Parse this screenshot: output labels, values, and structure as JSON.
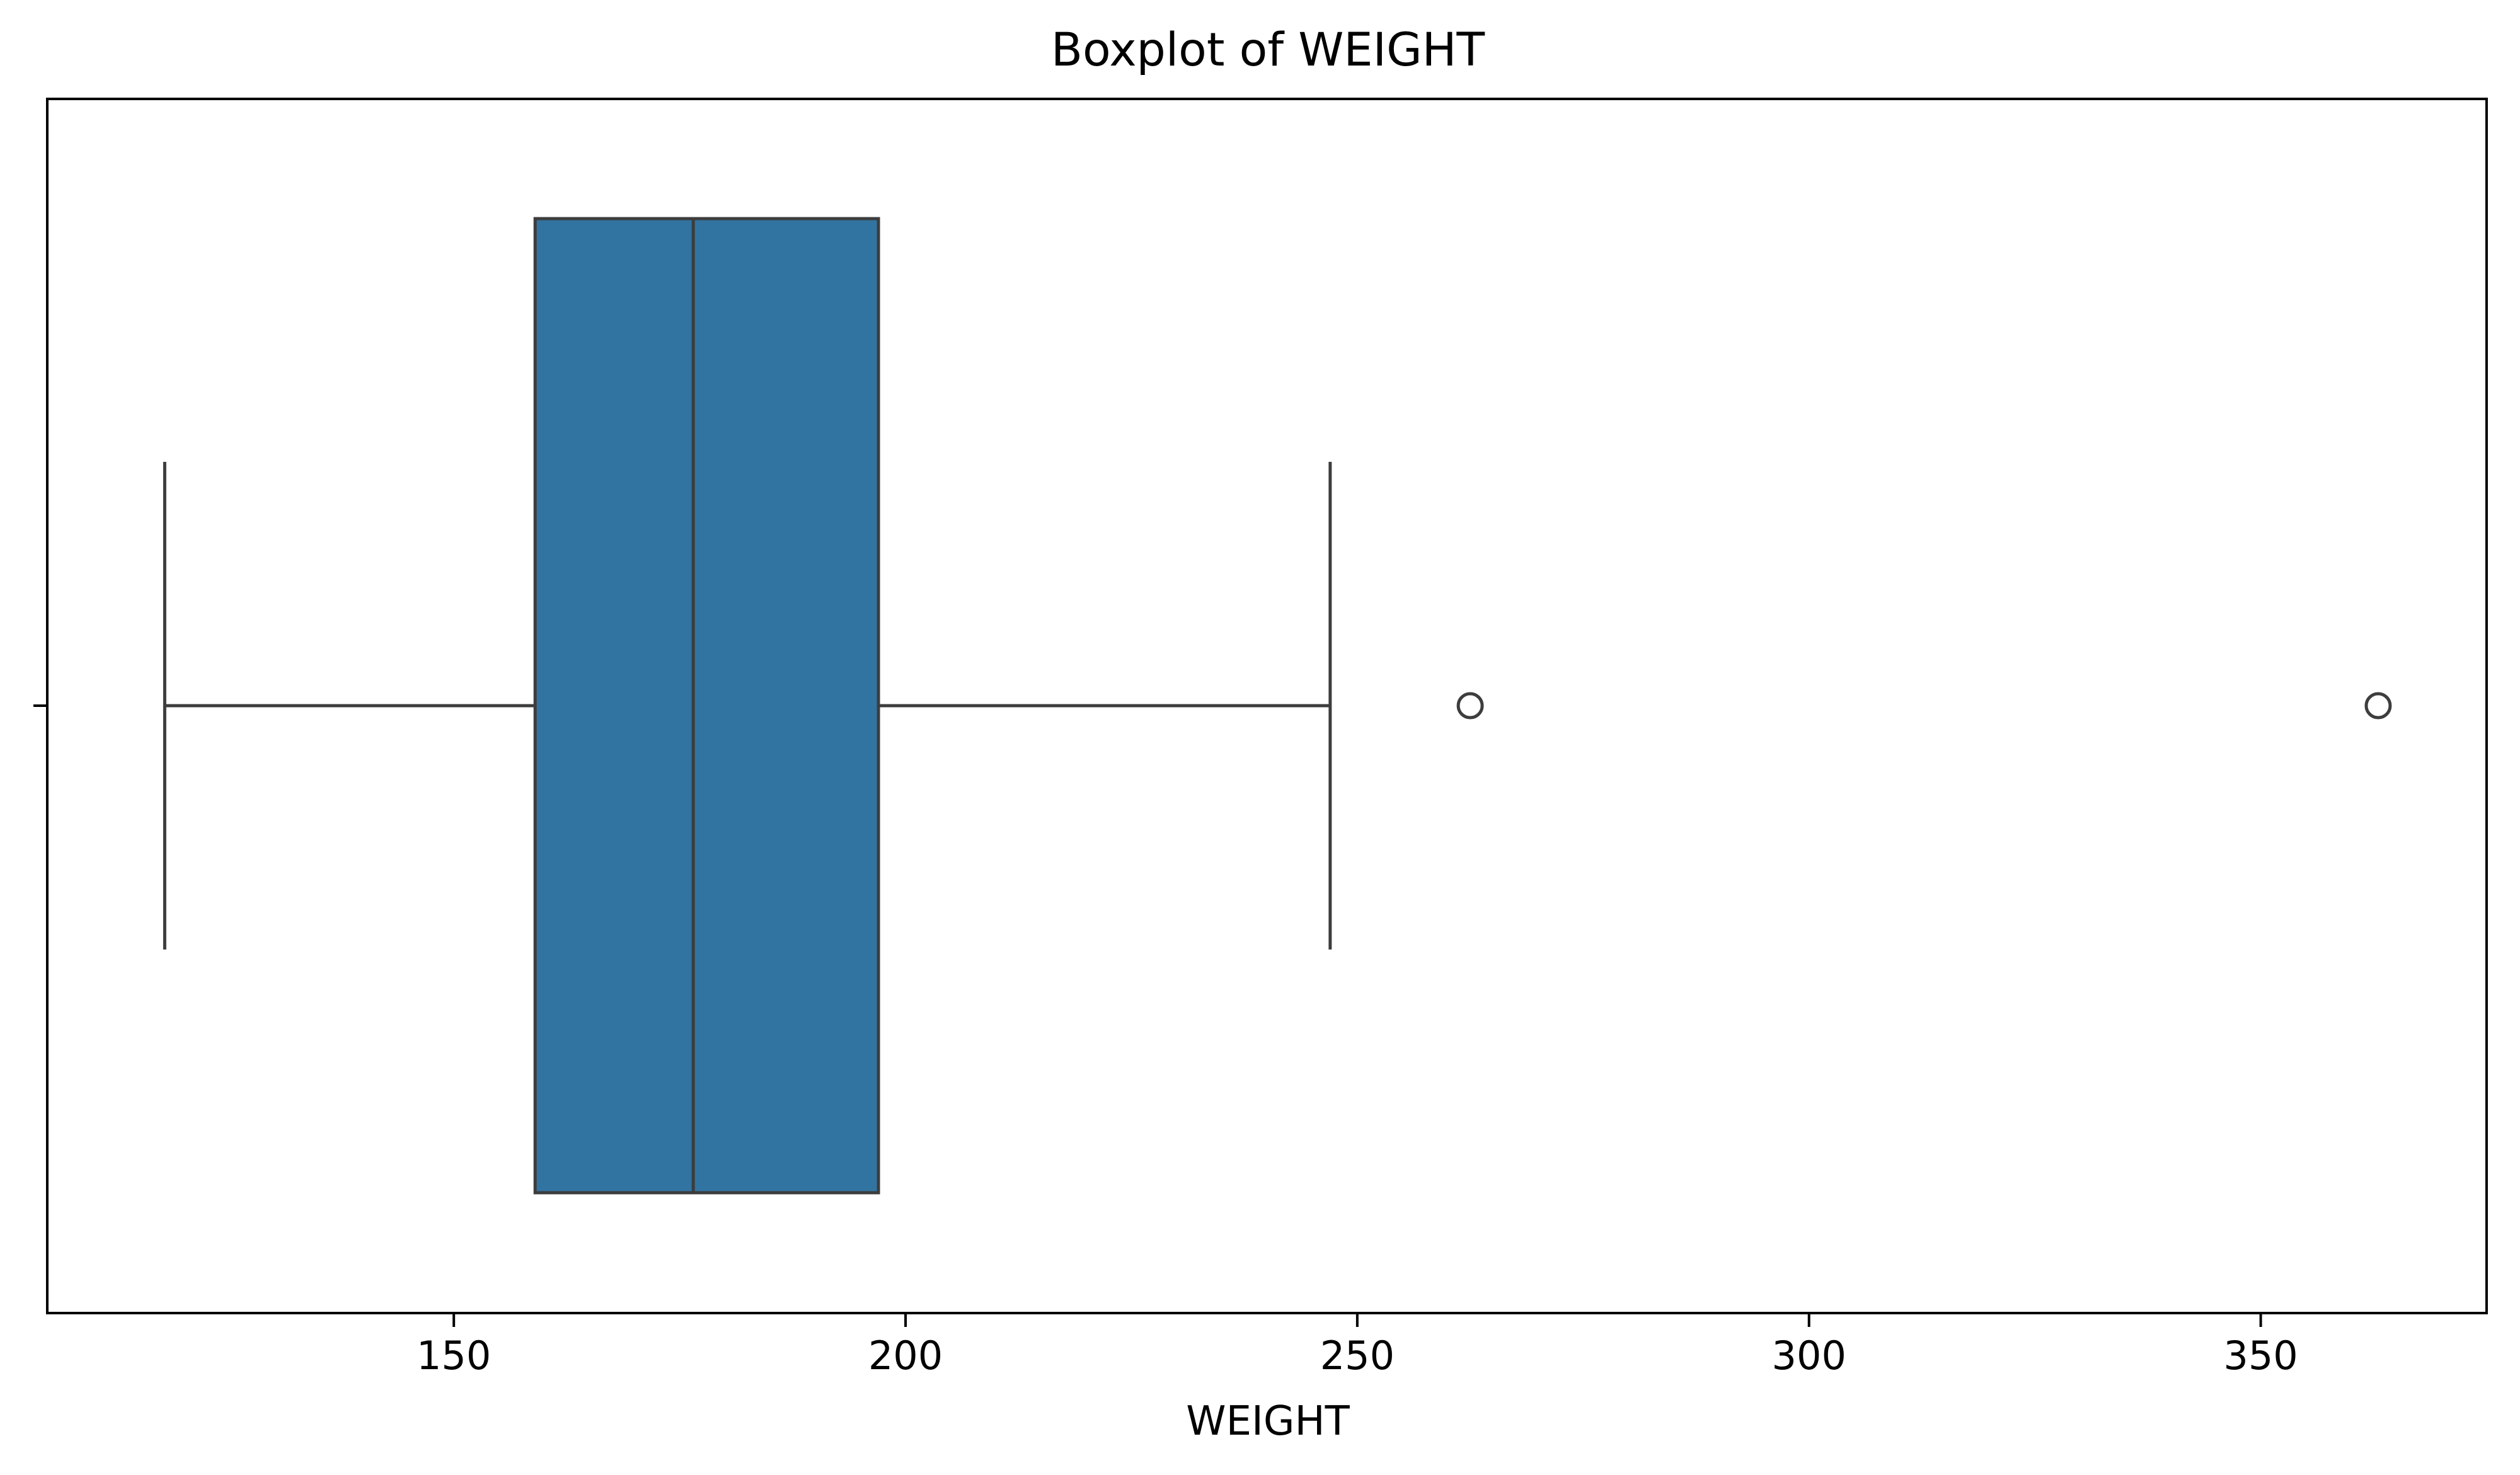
{
  "chart_data": {
    "type": "boxplot",
    "title": "Boxplot of WEIGHT",
    "xlabel": "WEIGHT",
    "ylabel": "",
    "orientation": "horizontal",
    "xlim": [
      105,
      375
    ],
    "xticks": [
      150,
      200,
      250,
      300,
      350
    ],
    "xtick_labels": [
      "150",
      "200",
      "250",
      "300",
      "350"
    ],
    "yticks": [
      ""
    ],
    "grid": false,
    "legend": null,
    "series": [
      {
        "whisker_low": 118,
        "q1": 159,
        "median": 176.5,
        "q3": 197,
        "whisker_high": 247,
        "outliers": [
          262.5,
          363
        ]
      }
    ],
    "colors": {
      "box_fill": "#3274a1",
      "lines": "#3d3d3d",
      "frame": "#000000",
      "background": "#ffffff"
    }
  }
}
